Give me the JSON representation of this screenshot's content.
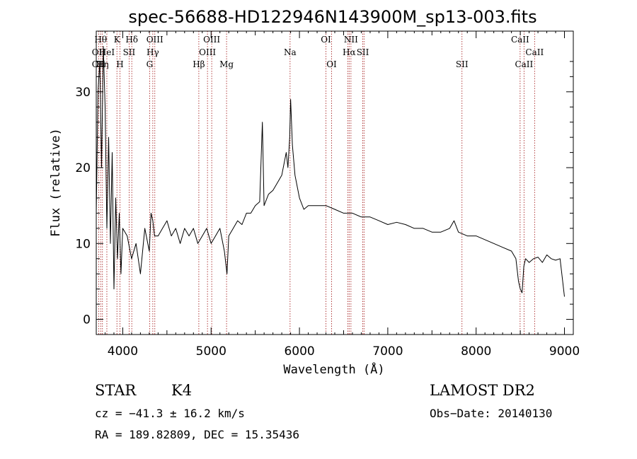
{
  "chart_data": {
    "type": "line",
    "title": "spec-56688-HD122946N143900M_sp13-003.fits",
    "xlabel": "Wavelength (Å)",
    "ylabel": "Flux (relative)",
    "xlim": [
      3700,
      9100
    ],
    "ylim": [
      -2,
      38
    ],
    "xticks": [
      4000,
      5000,
      6000,
      7000,
      8000,
      9000
    ],
    "yticks": [
      0,
      10,
      20,
      30
    ],
    "spectrum": {
      "x": [
        3700,
        3720,
        3740,
        3760,
        3780,
        3800,
        3820,
        3840,
        3860,
        3880,
        3900,
        3920,
        3940,
        3960,
        3980,
        4000,
        4050,
        4100,
        4150,
        4200,
        4250,
        4300,
        4320,
        4340,
        4360,
        4400,
        4450,
        4500,
        4550,
        4600,
        4650,
        4700,
        4750,
        4800,
        4850,
        4900,
        4950,
        5000,
        5050,
        5100,
        5150,
        5180,
        5200,
        5250,
        5300,
        5350,
        5400,
        5450,
        5500,
        5550,
        5580,
        5600,
        5650,
        5700,
        5750,
        5800,
        5850,
        5870,
        5890,
        5900,
        5920,
        5950,
        6000,
        6050,
        6100,
        6200,
        6300,
        6400,
        6500,
        6600,
        6700,
        6800,
        6900,
        7000,
        7100,
        7200,
        7300,
        7400,
        7500,
        7600,
        7700,
        7750,
        7800,
        7900,
        8000,
        8100,
        8200,
        8300,
        8400,
        8450,
        8480,
        8500,
        8520,
        8540,
        8560,
        8600,
        8650,
        8700,
        8750,
        8800,
        8850,
        8900,
        8950,
        9000
      ],
      "y": [
        14,
        30,
        34,
        20,
        36,
        28,
        12,
        24,
        10,
        22,
        4,
        16,
        8,
        14,
        6,
        12,
        11,
        8,
        10,
        6,
        12,
        9,
        14,
        13,
        11,
        11,
        12,
        13,
        11,
        12,
        10,
        12,
        11,
        12,
        10,
        11,
        12,
        10,
        11,
        12,
        9,
        6,
        11,
        12,
        13,
        12.5,
        14,
        14,
        15,
        15.5,
        26,
        15,
        16.5,
        17,
        18,
        19,
        22,
        20,
        24,
        29,
        23,
        19,
        16,
        14.5,
        15,
        15,
        15,
        14.5,
        14,
        14,
        13.5,
        13.5,
        13,
        12.5,
        12.8,
        12.5,
        12,
        12,
        11.5,
        11.5,
        12,
        13,
        11.5,
        11,
        11,
        10.5,
        10,
        9.5,
        9,
        8,
        5,
        4,
        3.5,
        7,
        8,
        7.5,
        8,
        8.2,
        7.5,
        8.5,
        8,
        7.8,
        8,
        3
      ]
    },
    "lines": [
      {
        "name": "OII",
        "x": 3727
      },
      {
        "name": "Hθ",
        "x": 3750
      },
      {
        "name": "Hη",
        "x": 3770
      },
      {
        "name": "HeI",
        "x": 3820
      },
      {
        "name": "K",
        "x": 3934
      },
      {
        "name": "H",
        "x": 3968
      },
      {
        "name": "SII",
        "x": 4072
      },
      {
        "name": "Hδ",
        "x": 4102
      },
      {
        "name": "G",
        "x": 4304
      },
      {
        "name": "Hγ",
        "x": 4340
      },
      {
        "name": "OIII",
        "x": 4363
      },
      {
        "name": "Hβ",
        "x": 4861
      },
      {
        "name": "OIII",
        "x": 4959
      },
      {
        "name": "OIII",
        "x": 5007
      },
      {
        "name": "Mg",
        "x": 5175
      },
      {
        "name": "Na",
        "x": 5894
      },
      {
        "name": "OI",
        "x": 6300
      },
      {
        "name": "OI",
        "x": 6364
      },
      {
        "name": "NII",
        "x": 6548
      },
      {
        "name": "Hα",
        "x": 6563
      },
      {
        "name": "NII",
        "x": 6583
      },
      {
        "name": "SII",
        "x": 6717
      },
      {
        "name": "SII",
        "x": 6731
      },
      {
        "name": "SII",
        "x": 7840
      },
      {
        "name": "CaII",
        "x": 8498
      },
      {
        "name": "CaII",
        "x": 8542
      },
      {
        "name": "CaII",
        "x": 8662
      }
    ],
    "line_labels": [
      {
        "text": "Hθ",
        "x": 3750,
        "row": 1
      },
      {
        "text": "K",
        "x": 3934,
        "row": 1
      },
      {
        "text": "Hδ",
        "x": 4102,
        "row": 1
      },
      {
        "text": "OIII",
        "x": 4363,
        "row": 1
      },
      {
        "text": "OIII",
        "x": 5007,
        "row": 1
      },
      {
        "text": "OI",
        "x": 6300,
        "row": 1
      },
      {
        "text": "NII",
        "x": 6583,
        "row": 1
      },
      {
        "text": "CaII",
        "x": 8498,
        "row": 1
      },
      {
        "text": "OII",
        "x": 3727,
        "row": 2
      },
      {
        "text": "HeI",
        "x": 3820,
        "row": 2
      },
      {
        "text": "SII",
        "x": 4072,
        "row": 2
      },
      {
        "text": "Hγ",
        "x": 4340,
        "row": 2
      },
      {
        "text": "OIII",
        "x": 4959,
        "row": 2
      },
      {
        "text": "Na",
        "x": 5894,
        "row": 2
      },
      {
        "text": "Hα",
        "x": 6563,
        "row": 2
      },
      {
        "text": "SII",
        "x": 6717,
        "row": 2
      },
      {
        "text": "CaII",
        "x": 8662,
        "row": 2
      },
      {
        "text": "OII",
        "x": 3727,
        "row": 3
      },
      {
        "text": "Hη",
        "x": 3770,
        "row": 3
      },
      {
        "text": "H",
        "x": 3968,
        "row": 3
      },
      {
        "text": "G",
        "x": 4304,
        "row": 3
      },
      {
        "text": "Hβ",
        "x": 4861,
        "row": 3
      },
      {
        "text": "Mg",
        "x": 5175,
        "row": 3
      },
      {
        "text": "OI",
        "x": 6364,
        "row": 3
      },
      {
        "text": "SII",
        "x": 7840,
        "row": 3
      },
      {
        "text": "CaII",
        "x": 8542,
        "row": 3
      }
    ],
    "colors": {
      "spectrum": "#000000",
      "lines": "#a01010",
      "axes": "#000000"
    }
  },
  "footer": {
    "object_class": "STAR",
    "subclass": "K4",
    "survey": "LAMOST DR2",
    "cz": "cz = −41.3 ± 16.2 km/s",
    "obs_date": "Obs−Date: 20140130",
    "coords": "RA = 189.82809, DEC =  15.35436"
  }
}
